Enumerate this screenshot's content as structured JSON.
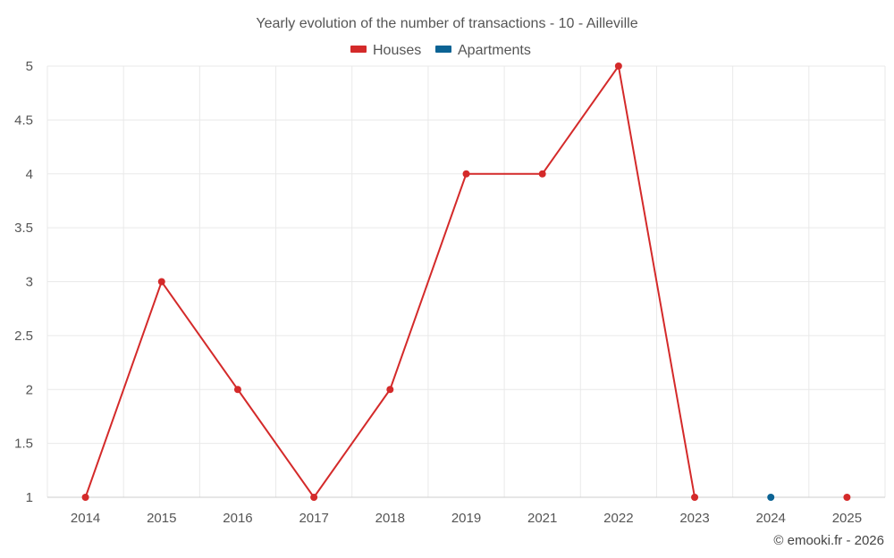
{
  "chart_data": {
    "type": "line",
    "title": "Yearly evolution of the number of transactions - 10 - Ailleville",
    "categories": [
      "2014",
      "2015",
      "2016",
      "2017",
      "2018",
      "2019",
      "2021",
      "2022",
      "2023",
      "2024",
      "2025"
    ],
    "series": [
      {
        "name": "Houses",
        "color": "#d42a2a",
        "values": [
          1,
          3,
          2,
          1,
          2,
          4,
          4,
          5,
          1,
          null,
          1
        ]
      },
      {
        "name": "Apartments",
        "color": "#0b6394",
        "values": [
          null,
          null,
          null,
          null,
          null,
          null,
          null,
          null,
          null,
          1,
          null
        ]
      }
    ],
    "yticks": [
      "1",
      "1.5",
      "2",
      "2.5",
      "3",
      "3.5",
      "4",
      "4.5",
      "5"
    ],
    "ylim": [
      1,
      5
    ],
    "grid": true,
    "legend_position": "top-center",
    "xlabel": "",
    "ylabel": ""
  },
  "credit": "© emooki.fr - 2026"
}
